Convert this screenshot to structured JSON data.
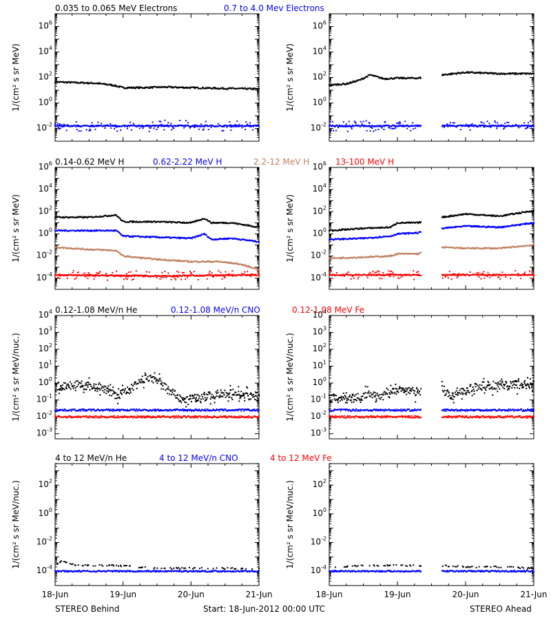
{
  "colors": {
    "black": "#000000",
    "blue": "#0000ff",
    "tan": "#c08060",
    "red": "#ff0000"
  },
  "footer": {
    "left": "STEREO Behind",
    "center": "Start: 18-Jun-2012 00:00 UTC",
    "right": "STEREO Ahead"
  },
  "chart_data": [
    {
      "type": "scatter",
      "panel": "electrons",
      "ylabel": "1/(cm² s sr MeV)",
      "yscale": "log",
      "ylim_exp": [
        -3,
        7
      ],
      "tick_exps": [
        -2,
        0,
        2,
        4,
        6
      ],
      "legend": [
        {
          "text": "0.035 to 0.065 MeV Electrons",
          "color": "#000000"
        },
        {
          "text": "0.7 to 4.0 Mev Electrons",
          "color": "#0000ff"
        }
      ],
      "xlim_days": [
        0,
        3
      ],
      "x_ticks": [
        "18-Jun",
        "19-Jun",
        "20-Jun",
        "21-Jun"
      ],
      "behind": {
        "series": [
          {
            "name": "0.035 to 0.065 MeV Electrons",
            "color": "#000000",
            "x": [
              0,
              0.3,
              0.6,
              0.85,
              1.0,
              1.3,
              1.6,
              2.0,
              2.4,
              3.0
            ],
            "y_exp": [
              1.65,
              1.6,
              1.55,
              1.4,
              1.2,
              1.2,
              1.25,
              1.2,
              1.15,
              1.1
            ]
          },
          {
            "name": "0.7 to 4.0 Mev Electrons",
            "color": "#0000ff",
            "x": [
              0,
              1.5,
              3.0
            ],
            "y_exp": [
              -1.8,
              -1.8,
              -1.8
            ]
          }
        ]
      },
      "ahead": {
        "gap": [
          1.35,
          1.65
        ],
        "series": [
          {
            "name": "0.035 to 0.065 MeV Electrons",
            "color": "#000000",
            "x": [
              0,
              0.25,
              0.45,
              0.6,
              0.8,
              1.0,
              1.3,
              1.65,
              2.0,
              2.5,
              3.0
            ],
            "y_exp": [
              1.4,
              1.5,
              1.8,
              2.2,
              1.9,
              1.95,
              1.95,
              2.2,
              2.4,
              2.3,
              2.3
            ]
          },
          {
            "name": "0.7 to 4.0 Mev Electrons",
            "color": "#0000ff",
            "x": [
              0,
              1.3,
              1.65,
              3.0
            ],
            "y_exp": [
              -1.8,
              -1.8,
              -1.8,
              -1.8
            ]
          }
        ]
      }
    },
    {
      "type": "scatter",
      "panel": "protons",
      "ylabel": "1/(cm² s sr MeV)",
      "yscale": "log",
      "ylim_exp": [
        -5,
        6
      ],
      "tick_exps": [
        -4,
        -2,
        0,
        2,
        4,
        6
      ],
      "legend": [
        {
          "text": "0.14-0.62 MeV H",
          "color": "#000000"
        },
        {
          "text": "0.62-2.22 MeV H",
          "color": "#0000ff"
        },
        {
          "text": "2.2-12 MeV H",
          "color": "#c08060"
        },
        {
          "text": "13-100 MeV H",
          "color": "#ff0000"
        }
      ],
      "xlim_days": [
        0,
        3
      ],
      "x_ticks": [
        "18-Jun",
        "19-Jun",
        "20-Jun",
        "21-Jun"
      ],
      "behind": {
        "series": [
          {
            "name": "0.14-0.62 MeV H",
            "color": "#000000",
            "x": [
              0,
              0.5,
              0.9,
              1.0,
              1.5,
              2.0,
              2.2,
              2.3,
              2.6,
              3.0
            ],
            "y_exp": [
              1.5,
              1.5,
              1.7,
              1.1,
              1.1,
              1.0,
              1.4,
              1.0,
              1.0,
              0.6
            ]
          },
          {
            "name": "0.62-2.22 MeV H",
            "color": "#0000ff",
            "x": [
              0,
              0.5,
              0.9,
              1.0,
              1.5,
              2.0,
              2.2,
              2.3,
              2.6,
              3.0
            ],
            "y_exp": [
              0.3,
              0.3,
              0.3,
              -0.2,
              -0.3,
              -0.4,
              0.0,
              -0.5,
              -0.4,
              -0.7
            ]
          },
          {
            "name": "2.2-12 MeV H",
            "color": "#c08060",
            "x": [
              0,
              0.5,
              0.9,
              1.0,
              1.5,
              2.0,
              2.4,
              2.7,
              3.0
            ],
            "y_exp": [
              -1.2,
              -1.4,
              -1.5,
              -2.0,
              -2.3,
              -2.5,
              -2.5,
              -2.7,
              -3.2
            ]
          },
          {
            "name": "13-100 MeV H",
            "color": "#ff0000",
            "x": [
              0,
              1.5,
              3.0
            ],
            "y_exp": [
              -3.7,
              -3.8,
              -3.7
            ]
          }
        ]
      },
      "ahead": {
        "gap": [
          1.35,
          1.65
        ],
        "series": [
          {
            "name": "0.14-0.62 MeV H",
            "color": "#000000",
            "x": [
              0,
              0.5,
              0.9,
              1.0,
              1.3,
              1.65,
              2.0,
              2.5,
              3.0
            ],
            "y_exp": [
              0.3,
              0.5,
              0.6,
              1.0,
              1.0,
              1.5,
              1.8,
              1.6,
              2.1
            ]
          },
          {
            "name": "0.62-2.22 MeV H",
            "color": "#0000ff",
            "x": [
              0,
              0.5,
              0.9,
              1.0,
              1.3,
              1.65,
              2.0,
              2.5,
              3.0
            ],
            "y_exp": [
              -0.5,
              -0.4,
              -0.2,
              0.0,
              0.1,
              0.5,
              0.7,
              0.6,
              1.0
            ]
          },
          {
            "name": "2.2-12 MeV H",
            "color": "#c08060",
            "x": [
              0,
              0.5,
              0.9,
              1.0,
              1.3,
              1.65,
              2.0,
              2.5,
              3.0
            ],
            "y_exp": [
              -2.2,
              -2.1,
              -2.0,
              -1.8,
              -1.8,
              -1.2,
              -1.3,
              -1.3,
              -1.0
            ]
          },
          {
            "name": "13-100 MeV H",
            "color": "#ff0000",
            "x": [
              0,
              1.3,
              1.65,
              3.0
            ],
            "y_exp": [
              -3.7,
              -3.7,
              -3.7,
              -3.7
            ]
          }
        ]
      }
    },
    {
      "type": "scatter",
      "panel": "heavy-low",
      "ylabel": "1/(cm² s sr MeV/nuc.)",
      "yscale": "log",
      "ylim_exp": [
        -3.3,
        4
      ],
      "tick_exps": [
        -3,
        -2,
        -1,
        0,
        1,
        2,
        3,
        4
      ],
      "legend": [
        {
          "text": "0.12-1.08 MeV/n He",
          "color": "#000000"
        },
        {
          "text": "0.12-1.08 MeV/n CNO",
          "color": "#0000ff"
        },
        {
          "text": "0.12-1.08 MeV Fe",
          "color": "#ff0000"
        }
      ],
      "xlim_days": [
        0,
        3
      ],
      "x_ticks": [
        "18-Jun",
        "19-Jun",
        "20-Jun",
        "21-Jun"
      ],
      "behind": {
        "series": [
          {
            "name": "0.12-1.08 MeV/n He",
            "color": "#000000",
            "x": [
              0,
              0.3,
              0.6,
              0.8,
              0.9,
              1.1,
              1.35,
              1.5,
              1.7,
              1.9,
              2.2,
              2.5,
              3.0
            ],
            "y_exp": [
              -0.2,
              -0.1,
              -0.2,
              -0.5,
              -0.8,
              -0.4,
              0.3,
              0.2,
              -0.5,
              -1.1,
              -0.8,
              -0.6,
              -0.8
            ]
          },
          {
            "name": "0.12-1.08 MeV/n CNO",
            "color": "#0000ff",
            "x": [
              0,
              1.5,
              3.0
            ],
            "y_exp": [
              -1.6,
              -1.6,
              -1.6
            ]
          },
          {
            "name": "0.12-1.08 MeV Fe",
            "color": "#ff0000",
            "x": [
              0,
              1.5,
              3.0
            ],
            "y_exp": [
              -2.0,
              -2.0,
              -2.0
            ]
          }
        ]
      },
      "ahead": {
        "gap": [
          1.35,
          1.65
        ],
        "series": [
          {
            "name": "0.12-1.08 MeV/n He",
            "color": "#000000",
            "x": [
              0,
              0.4,
              0.8,
              1.0,
              1.3,
              1.65,
              1.8,
              2.0,
              2.2,
              2.6,
              3.0
            ],
            "y_exp": [
              -0.9,
              -0.8,
              -0.7,
              -0.4,
              -0.5,
              -0.3,
              -0.8,
              -0.4,
              -0.2,
              -0.1,
              -0.1
            ]
          },
          {
            "name": "0.12-1.08 MeV/n CNO",
            "color": "#0000ff",
            "x": [
              0,
              1.3,
              1.65,
              3.0
            ],
            "y_exp": [
              -1.6,
              -1.6,
              -1.6,
              -1.6
            ]
          },
          {
            "name": "0.12-1.08 MeV Fe",
            "color": "#ff0000",
            "x": [
              0,
              1.3,
              1.65,
              3.0
            ],
            "y_exp": [
              -2.0,
              -2.0,
              -2.0,
              -2.0
            ]
          }
        ]
      }
    },
    {
      "type": "scatter",
      "panel": "heavy-high",
      "ylabel": "1/(cm² s sr MeV/nuc.)",
      "yscale": "log",
      "ylim_exp": [
        -5,
        3.5
      ],
      "tick_exps": [
        -4,
        -2,
        0,
        2
      ],
      "legend": [
        {
          "text": "4 to 12 MeV/n He",
          "color": "#000000"
        },
        {
          "text": "4 to 12 MeV/n CNO",
          "color": "#0000ff"
        },
        {
          "text": "4 to 12 MeV Fe",
          "color": "#ff0000"
        }
      ],
      "xlim_days": [
        0,
        3
      ],
      "x_ticks": [
        "18-Jun",
        "19-Jun",
        "20-Jun",
        "21-Jun"
      ],
      "behind": {
        "series": [
          {
            "name": "4 to 12 MeV/n He",
            "color": "#000000",
            "x": [
              0,
              0.1,
              0.3,
              0.9,
              1.5,
              2.0,
              2.5,
              3.0
            ],
            "y_exp": [
              -3.6,
              -3.3,
              -3.6,
              -3.6,
              -3.8,
              -3.8,
              -3.8,
              -3.8
            ]
          },
          {
            "name": "4 to 12 MeV/n CNO",
            "color": "#0000ff",
            "x": [
              0,
              1.5,
              3.0
            ],
            "y_exp": [
              -4.0,
              -4.0,
              -4.0
            ]
          }
        ]
      },
      "ahead": {
        "gap": [
          1.35,
          1.65
        ],
        "series": [
          {
            "name": "4 to 12 MeV/n He",
            "color": "#000000",
            "x": [
              0,
              0.6,
              1.0,
              1.3,
              1.65,
              2.0,
              2.5,
              3.0
            ],
            "y_exp": [
              -3.7,
              -3.6,
              -3.6,
              -3.6,
              -3.6,
              -3.7,
              -3.7,
              -3.8
            ]
          },
          {
            "name": "4 to 12 MeV/n CNO",
            "color": "#0000ff",
            "x": [
              0,
              1.3,
              1.65,
              3.0
            ],
            "y_exp": [
              -4.0,
              -4.0,
              -4.0,
              -4.0
            ]
          }
        ]
      }
    }
  ]
}
